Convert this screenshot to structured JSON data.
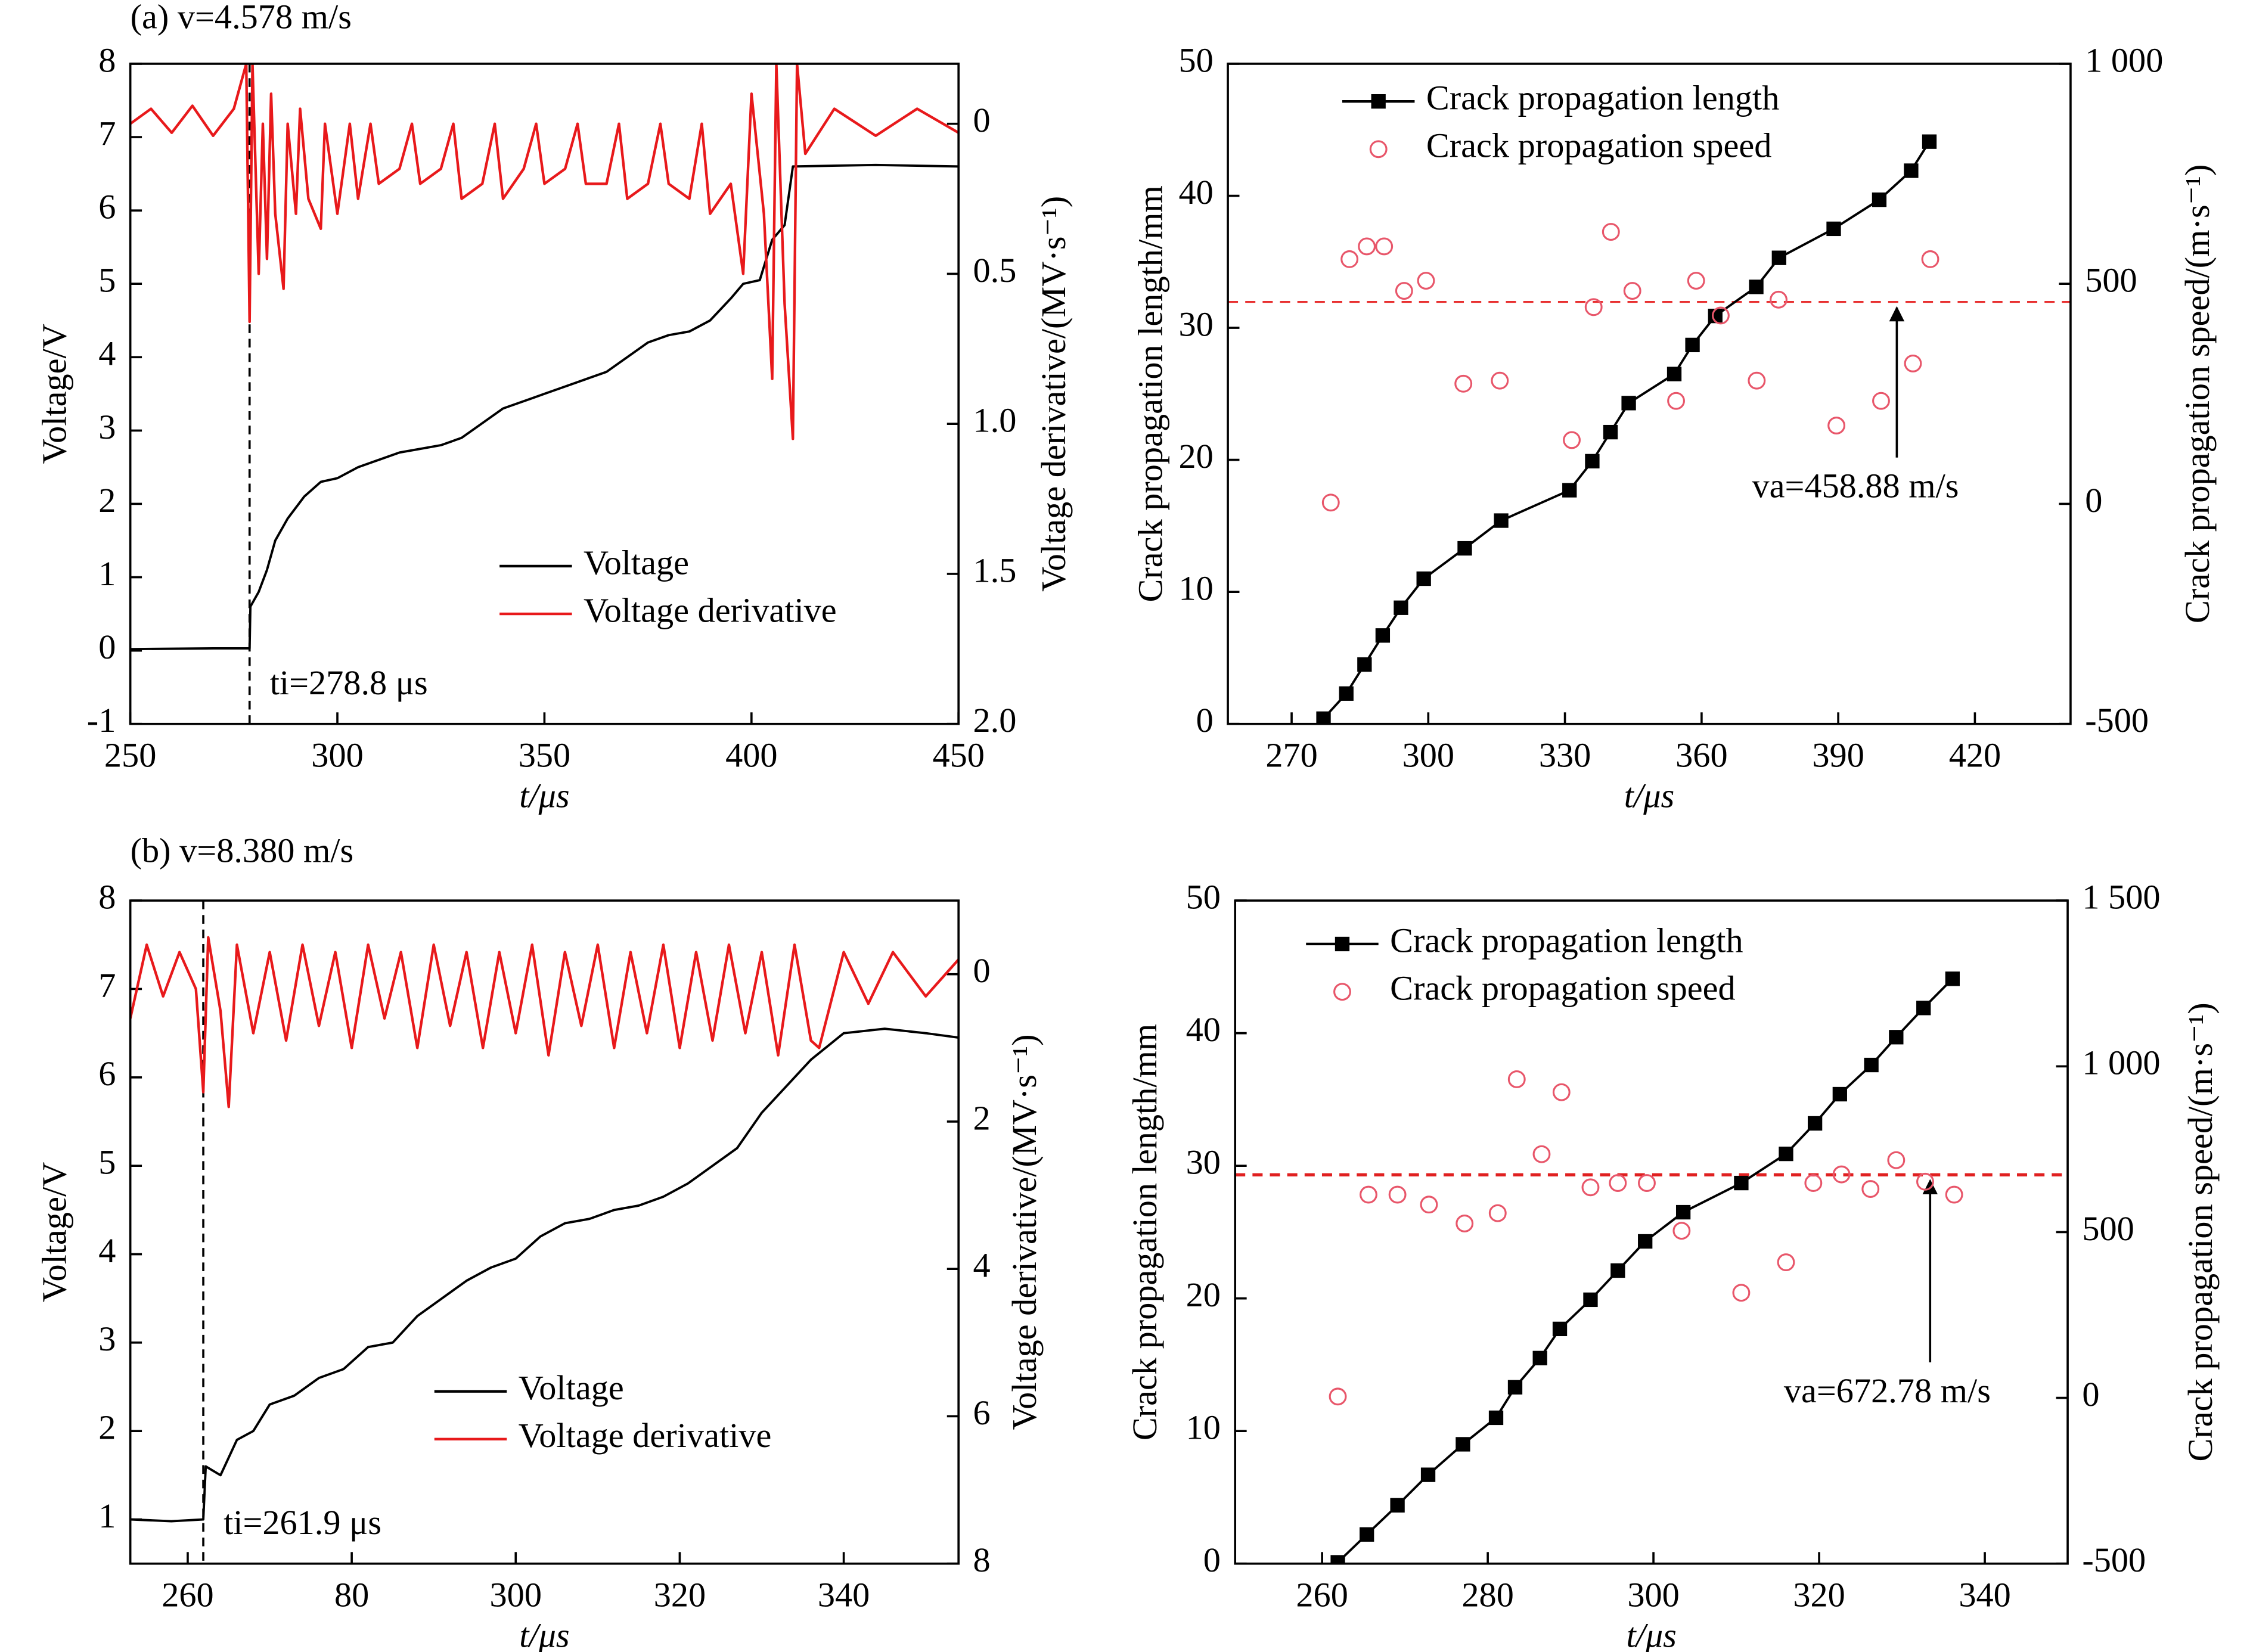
{
  "chart_data": [
    {
      "type": "line",
      "title": "(a) v=4.578 m/s",
      "xlabel": "t/μs",
      "ylabel": "Voltage/V",
      "y2label": "Voltage derivative/(MV·s⁻¹)",
      "xlim": [
        250,
        450
      ],
      "xticks": [
        250,
        300,
        350,
        400,
        450
      ],
      "ylim": [
        -1,
        8
      ],
      "yticks": [
        -1,
        0,
        1,
        2,
        3,
        4,
        5,
        6,
        7,
        8
      ],
      "y2lim": [
        -0.2,
        2.0
      ],
      "y2_inverted": true,
      "y2ticks": [
        0,
        0.5,
        {
          "value": 1.0,
          "label": "1.0"
        },
        1.5,
        {
          "value": 2.0,
          "label": "2.0"
        }
      ],
      "marker_line": {
        "x": 278.8,
        "label": "ti=278.8 μs"
      },
      "series": [
        {
          "name": "Voltage",
          "color": "#000000",
          "style": "line",
          "axis": "y",
          "x": [
            250,
            270,
            278.8,
            279,
            281,
            283,
            285,
            288,
            292,
            296,
            300,
            305,
            310,
            315,
            320,
            325,
            330,
            335,
            340,
            345,
            350,
            355,
            360,
            365,
            370,
            375,
            380,
            385,
            390,
            395,
            398,
            402,
            405,
            408,
            410,
            430,
            450
          ],
          "values": [
            0.02,
            0.03,
            0.03,
            0.6,
            0.8,
            1.1,
            1.5,
            1.8,
            2.1,
            2.3,
            2.35,
            2.5,
            2.6,
            2.7,
            2.75,
            2.8,
            2.9,
            3.1,
            3.3,
            3.4,
            3.5,
            3.6,
            3.7,
            3.8,
            4.0,
            4.2,
            4.3,
            4.35,
            4.5,
            4.8,
            5.0,
            5.05,
            5.6,
            5.8,
            6.6,
            6.62,
            6.6
          ]
        },
        {
          "name": "Voltage derivative",
          "color": "#e8191b",
          "style": "line",
          "axis": "y2",
          "x": [
            250,
            255,
            260,
            265,
            270,
            275,
            278,
            278.8,
            279.5,
            281,
            282,
            283,
            284,
            285,
            287,
            288,
            290,
            291,
            293,
            296,
            297,
            300,
            303,
            305,
            308,
            310,
            315,
            318,
            320,
            325,
            328,
            330,
            335,
            338,
            340,
            345,
            348,
            350,
            355,
            358,
            360,
            365,
            368,
            370,
            375,
            378,
            380,
            385,
            388,
            390,
            395,
            398,
            400,
            403,
            405,
            406,
            408,
            410,
            411,
            413,
            420,
            430,
            440,
            450
          ],
          "values": [
            0,
            -0.05,
            0.03,
            -0.06,
            0.04,
            -0.05,
            -0.2,
            0.66,
            -0.2,
            0.5,
            0,
            0.45,
            -0.1,
            0.3,
            0.55,
            0,
            0.3,
            -0.05,
            0.25,
            0.35,
            0,
            0.3,
            0,
            0.25,
            0,
            0.2,
            0.15,
            0,
            0.2,
            0.15,
            0,
            0.25,
            0.2,
            0,
            0.25,
            0.15,
            0,
            0.2,
            0.15,
            0,
            0.2,
            0.2,
            0,
            0.25,
            0.2,
            0,
            0.2,
            0.25,
            0,
            0.3,
            0.2,
            0.5,
            -0.1,
            0.3,
            0.85,
            -0.2,
            0.6,
            1.05,
            -0.2,
            0.1,
            -0.05,
            0.04,
            -0.05,
            0.03
          ]
        }
      ]
    },
    {
      "type": "combo",
      "xlabel": "t/μs",
      "ylabel": "Crack propagation length/mm",
      "y2label": "Crack propagation speed/(m·s⁻¹)",
      "xlim": [
        256,
        441
      ],
      "xticks": [
        270,
        300,
        330,
        360,
        390,
        420
      ],
      "ylim": [
        0,
        50
      ],
      "yticks": [
        0,
        10,
        20,
        30,
        40,
        50
      ],
      "y2lim": [
        -500,
        1000
      ],
      "y2ticks": [
        -500,
        0,
        500,
        {
          "value": 1000,
          "label": "1 000"
        }
      ],
      "average": {
        "value": 458.88,
        "label": "va=458.88 m/s",
        "axis": "y2",
        "color": "#e83030"
      },
      "series": [
        {
          "name": "Crack propagation length",
          "color": "#000000",
          "style": "line-markers",
          "axis": "y",
          "x": [
            277,
            282,
            286,
            290,
            294,
            299,
            308,
            316,
            331,
            336,
            340,
            344,
            354,
            358,
            363,
            372,
            377,
            389,
            399,
            406,
            410
          ],
          "values": [
            0.4,
            2.3,
            4.5,
            6.7,
            8.8,
            11,
            13.3,
            15.4,
            17.7,
            19.9,
            22.1,
            24.3,
            26.5,
            28.7,
            30.9,
            33.1,
            35.3,
            37.5,
            39.7,
            41.9,
            44.1
          ]
        },
        {
          "name": "Crack propagation speed",
          "color": "#e8566a",
          "style": "markers",
          "axis": "y2",
          "x": [
            278.6,
            282.7,
            286.5,
            290.3,
            294.7,
            299.5,
            307.7,
            315.7,
            331.5,
            336.3,
            340.1,
            344.8,
            354.4,
            358.8,
            364.2,
            372.1,
            376.9,
            389.6,
            399.4,
            406.4,
            410.2
          ],
          "values": [
            3,
            556,
            585,
            585,
            484,
            507,
            273,
            280,
            145,
            447,
            618,
            484,
            234,
            507,
            428,
            280,
            464,
            178,
            234,
            319,
            556
          ]
        }
      ]
    },
    {
      "type": "line",
      "title": "(b) v=8.380 m/s",
      "xlabel": "t/μs",
      "ylabel": "Voltage/V",
      "y2label": "Voltage derivative/(MV·s⁻¹)",
      "xlim": [
        253,
        354
      ],
      "xticks": [
        260,
        {
          "value": 280,
          "label": "80"
        },
        300,
        320,
        340
      ],
      "ylim": [
        0.5,
        8
      ],
      "yticks": [
        1,
        2,
        3,
        4,
        5,
        6,
        7,
        8
      ],
      "y2lim": [
        -1,
        8
      ],
      "y2_inverted": true,
      "y2ticks": [
        0,
        2,
        4,
        6,
        8
      ],
      "marker_line": {
        "x": 261.9,
        "label": "ti=261.9 μs"
      },
      "series": [
        {
          "name": "Voltage",
          "color": "#000000",
          "style": "line",
          "axis": "y",
          "x": [
            253,
            258,
            261.9,
            262.2,
            264,
            266,
            268,
            270,
            273,
            276,
            279,
            282,
            285,
            288,
            291,
            294,
            297,
            300,
            303,
            306,
            309,
            312,
            315,
            318,
            321,
            324,
            327,
            330,
            333,
            336,
            340,
            345,
            350,
            354
          ],
          "values": [
            1.0,
            0.98,
            1.0,
            1.6,
            1.5,
            1.9,
            2.0,
            2.3,
            2.4,
            2.6,
            2.7,
            2.95,
            3.0,
            3.3,
            3.5,
            3.7,
            3.85,
            3.95,
            4.2,
            4.35,
            4.4,
            4.5,
            4.55,
            4.65,
            4.8,
            5.0,
            5.2,
            5.6,
            5.9,
            6.2,
            6.5,
            6.55,
            6.5,
            6.45
          ]
        },
        {
          "name": "Voltage derivative",
          "color": "#e8191b",
          "style": "line",
          "axis": "y2",
          "x": [
            253,
            255,
            257,
            259,
            261,
            261.9,
            262.5,
            264,
            265,
            266,
            268,
            270,
            272,
            274,
            276,
            278,
            280,
            282,
            284,
            286,
            288,
            290,
            292,
            294,
            296,
            298,
            300,
            302,
            304,
            306,
            308,
            310,
            312,
            314,
            316,
            318,
            320,
            322,
            324,
            326,
            328,
            330,
            332,
            334,
            336,
            337,
            340,
            343,
            346,
            350,
            354
          ],
          "values": [
            0.6,
            -0.4,
            0.3,
            -0.3,
            0.2,
            1.6,
            -0.5,
            0.5,
            1.8,
            -0.4,
            0.8,
            -0.3,
            0.9,
            -0.4,
            0.7,
            -0.3,
            1.0,
            -0.4,
            0.6,
            -0.3,
            1.0,
            -0.4,
            0.7,
            -0.3,
            1.0,
            -0.3,
            0.8,
            -0.4,
            1.1,
            -0.3,
            0.7,
            -0.4,
            1.0,
            -0.3,
            0.8,
            -0.4,
            1.0,
            -0.3,
            0.9,
            -0.4,
            0.8,
            -0.3,
            1.1,
            -0.4,
            0.9,
            1.0,
            -0.3,
            0.4,
            -0.3,
            0.3,
            -0.2
          ]
        }
      ]
    },
    {
      "type": "combo",
      "xlabel": "t/μs",
      "ylabel": "Crack propagation length/mm",
      "y2label": "Crack propagation speed/(m·s⁻¹)",
      "xlim": [
        249.5,
        350
      ],
      "xticks": [
        260,
        280,
        300,
        320,
        340
      ],
      "ylim": [
        0,
        50
      ],
      "yticks": [
        0,
        10,
        20,
        30,
        40,
        50
      ],
      "y2lim": [
        -500,
        1500
      ],
      "y2ticks": [
        -500,
        0,
        500,
        {
          "value": 1000,
          "label": "1 000"
        },
        {
          "value": 1500,
          "label": "1 500"
        }
      ],
      "average": {
        "value": 672.78,
        "label": "va=672.78 m/s",
        "axis": "y2",
        "color": "#e02020"
      },
      "series": [
        {
          "name": "Crack propagation length",
          "color": "#000000",
          "style": "line-markers",
          "axis": "y",
          "x": [
            261.9,
            265.4,
            269.1,
            272.8,
            277,
            281,
            283.3,
            286.3,
            288.7,
            292.4,
            295.7,
            299,
            303.6,
            310.6,
            316,
            319.5,
            322.5,
            326.3,
            329.3,
            332.6,
            336.1
          ],
          "values": [
            0.1,
            2.2,
            4.4,
            6.7,
            9.0,
            11.0,
            13.3,
            15.5,
            17.7,
            19.9,
            22.1,
            24.3,
            26.5,
            28.7,
            30.9,
            33.2,
            35.4,
            37.6,
            39.7,
            41.9,
            44.1
          ]
        },
        {
          "name": "Crack propagation speed",
          "color": "#e8566a",
          "style": "markers",
          "axis": "y2",
          "x": [
            261.9,
            265.6,
            269.1,
            272.9,
            277.2,
            281.2,
            283.5,
            286.5,
            288.9,
            292.4,
            295.7,
            299.2,
            303.4,
            310.6,
            316,
            319.3,
            322.7,
            326.2,
            329.3,
            332.8,
            336.3
          ],
          "values": [
            4,
            613,
            613,
            583,
            526,
            557,
            961,
            735,
            922,
            635,
            648,
            648,
            504,
            317,
            409,
            648,
            674,
            630,
            717,
            652,
            613
          ]
        }
      ]
    }
  ]
}
